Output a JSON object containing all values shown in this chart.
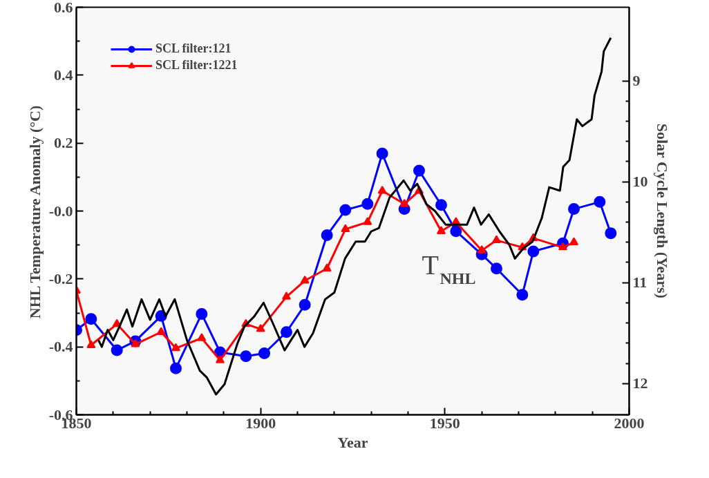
{
  "chart_data": {
    "type": "line",
    "xlabel": "Year",
    "ylabel": "NHL Temperature Anomaly (°C)",
    "y2label": "Solar Cycle Length (Years)",
    "xlim": [
      1850,
      2000
    ],
    "xticks": [
      1850,
      1900,
      1950,
      2000
    ],
    "ylim": [
      -0.6,
      0.6
    ],
    "yticks": [
      -0.6,
      -0.4,
      -0.2,
      {
        "value": 0,
        "label": "-0.0"
      },
      0.2,
      0.4,
      0.6
    ],
    "y2lim": [
      12.31,
      8.27
    ],
    "y2ticks": [
      9,
      10,
      11,
      12
    ],
    "grid": false,
    "legend": "top left",
    "series": [
      {
        "name": "SCL filter:121",
        "color": "#0000ff",
        "axis": "y2",
        "marker": "circle",
        "x": [
          1850,
          1854,
          1861,
          1866,
          1873,
          1877,
          1884,
          1889,
          1896,
          1901,
          1907,
          1912,
          1918,
          1923,
          1929,
          1933,
          1939,
          1943,
          1949,
          1953,
          1960,
          1964,
          1971,
          1974,
          1982,
          1985,
          1992,
          1995
        ],
        "values": [
          11.47,
          11.36,
          11.67,
          11.58,
          11.33,
          11.85,
          11.31,
          11.69,
          11.73,
          11.7,
          11.49,
          11.22,
          10.53,
          10.28,
          10.22,
          9.72,
          10.27,
          9.89,
          10.23,
          10.49,
          10.72,
          10.86,
          11.12,
          10.69,
          10.61,
          10.27,
          10.2,
          10.51
        ]
      },
      {
        "name": "SCL filter:1221",
        "color": "#ff0000",
        "axis": "y2",
        "marker": "triangle",
        "x": [
          1850,
          1854,
          1861,
          1866,
          1873,
          1877,
          1884,
          1889,
          1896,
          1900,
          1907,
          1912,
          1918,
          1923,
          1929,
          1933,
          1939,
          1943,
          1949,
          1953,
          1960,
          1964,
          1971,
          1974,
          1982,
          1985
        ],
        "values": [
          11.08,
          11.62,
          11.41,
          11.61,
          11.49,
          11.65,
          11.55,
          11.77,
          11.41,
          11.46,
          11.14,
          10.98,
          10.86,
          10.47,
          10.4,
          10.09,
          10.22,
          10.09,
          10.49,
          10.4,
          10.68,
          10.58,
          10.65,
          10.56,
          10.65,
          10.6
        ]
      },
      {
        "color": "#000000",
        "marker": "none",
        "x": [
          1856.0,
          1856.9,
          1858.5,
          1860.0,
          1861.7,
          1863.7,
          1865.2,
          1867.7,
          1870.0,
          1872.5,
          1874.2,
          1876.7,
          1880.0,
          1883.5,
          1885.4,
          1887.9,
          1890.2,
          1893.7,
          1895.6,
          1898.3,
          1900.8,
          1903.3,
          1906.5,
          1910.0,
          1911.9,
          1914.2,
          1917.5,
          1920.0,
          1922.9,
          1925.8,
          1928.3,
          1930.0,
          1932.1,
          1935.0,
          1938.8,
          1940.6,
          1942.5,
          1945.0,
          1947.3,
          1950.2,
          1952.7,
          1956.0,
          1957.9,
          1959.8,
          1961.9,
          1964.8,
          1967.5,
          1969.0,
          1971.3,
          1973.8,
          1976.3,
          1978.3,
          1981.2,
          1982.1,
          1983.8,
          1985.8,
          1987.3,
          1989.8,
          1990.6,
          1992.5,
          1993.1,
          1995.0
        ],
        "values": [
          -0.38,
          -0.4,
          -0.35,
          -0.38,
          -0.34,
          -0.29,
          -0.34,
          -0.26,
          -0.32,
          -0.26,
          -0.31,
          -0.26,
          -0.38,
          -0.47,
          -0.49,
          -0.54,
          -0.51,
          -0.39,
          -0.34,
          -0.31,
          -0.27,
          -0.33,
          -0.41,
          -0.35,
          -0.4,
          -0.36,
          -0.26,
          -0.24,
          -0.14,
          -0.09,
          -0.09,
          -0.06,
          -0.05,
          0.04,
          0.09,
          0.06,
          0.08,
          0.02,
          0.0,
          -0.04,
          -0.04,
          -0.04,
          0.01,
          -0.04,
          -0.01,
          -0.06,
          -0.1,
          -0.14,
          -0.11,
          -0.09,
          -0.02,
          0.07,
          0.06,
          0.13,
          0.15,
          0.27,
          0.25,
          0.27,
          0.34,
          0.41,
          0.47,
          0.51
        ]
      }
    ],
    "annotations": [
      "T$_{NHL}$"
    ]
  }
}
